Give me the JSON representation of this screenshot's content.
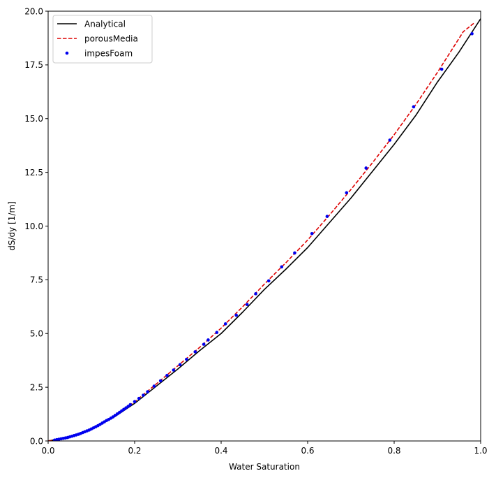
{
  "chart_data": {
    "type": "line",
    "xlabel": "Water Saturation",
    "ylabel": "dS/dy [1/m]",
    "xlim": [
      0.0,
      1.0
    ],
    "ylim": [
      0.0,
      20.0
    ],
    "xticks": [
      {
        "value": 0.0,
        "label": "0.0"
      },
      {
        "value": 0.2,
        "label": "0.2"
      },
      {
        "value": 0.4,
        "label": "0.4"
      },
      {
        "value": 0.6,
        "label": "0.6"
      },
      {
        "value": 0.8,
        "label": "0.8"
      },
      {
        "value": 1.0,
        "label": "1.0"
      }
    ],
    "yticks": [
      {
        "value": 0.0,
        "label": "0.0"
      },
      {
        "value": 2.5,
        "label": "2.5"
      },
      {
        "value": 5.0,
        "label": "5.0"
      },
      {
        "value": 7.5,
        "label": "7.5"
      },
      {
        "value": 10.0,
        "label": "10.0"
      },
      {
        "value": 12.5,
        "label": "12.5"
      },
      {
        "value": 15.0,
        "label": "15.0"
      },
      {
        "value": 17.5,
        "label": "17.5"
      },
      {
        "value": 20.0,
        "label": "20.0"
      }
    ],
    "grid": false,
    "legend_position": "top-left",
    "series": [
      {
        "name": "Analytical",
        "style": "solid-line",
        "color": "#000000",
        "x": [
          0.0,
          0.05,
          0.1,
          0.15,
          0.2,
          0.25,
          0.3,
          0.35,
          0.4,
          0.45,
          0.5,
          0.55,
          0.6,
          0.65,
          0.7,
          0.75,
          0.8,
          0.85,
          0.9,
          0.95,
          1.0
        ],
        "y": [
          0.0,
          0.18,
          0.55,
          1.08,
          1.75,
          2.55,
          3.35,
          4.2,
          5.0,
          6.0,
          7.05,
          8.0,
          9.0,
          10.15,
          11.3,
          12.55,
          13.8,
          15.15,
          16.7,
          18.1,
          19.65
        ]
      },
      {
        "name": "porousMedia",
        "style": "dashed-line",
        "color": "#dd0000",
        "x": [
          0.0,
          0.05,
          0.1,
          0.15,
          0.2,
          0.25,
          0.3,
          0.35,
          0.4,
          0.45,
          0.5,
          0.55,
          0.6,
          0.65,
          0.7,
          0.75,
          0.8,
          0.85,
          0.9,
          0.93,
          0.96,
          0.985
        ],
        "y": [
          0.0,
          0.19,
          0.57,
          1.12,
          1.82,
          2.65,
          3.5,
          4.35,
          5.25,
          6.25,
          7.3,
          8.3,
          9.35,
          10.5,
          11.7,
          12.95,
          14.25,
          15.65,
          17.15,
          18.1,
          19.05,
          19.45
        ]
      },
      {
        "name": "impesFoam",
        "style": "dot-marker",
        "color": "#0000ee",
        "x": [
          0.015,
          0.02,
          0.025,
          0.03,
          0.035,
          0.04,
          0.045,
          0.05,
          0.055,
          0.06,
          0.065,
          0.07,
          0.075,
          0.08,
          0.085,
          0.09,
          0.095,
          0.1,
          0.105,
          0.11,
          0.115,
          0.12,
          0.125,
          0.13,
          0.135,
          0.14,
          0.145,
          0.15,
          0.155,
          0.16,
          0.165,
          0.17,
          0.175,
          0.18,
          0.185,
          0.19,
          0.2,
          0.21,
          0.22,
          0.23,
          0.245,
          0.26,
          0.275,
          0.29,
          0.305,
          0.32,
          0.34,
          0.36,
          0.37,
          0.39,
          0.41,
          0.435,
          0.46,
          0.48,
          0.51,
          0.54,
          0.57,
          0.61,
          0.645,
          0.69,
          0.735,
          0.79,
          0.845,
          0.91,
          0.98
        ],
        "y": [
          0.04,
          0.06,
          0.08,
          0.1,
          0.12,
          0.14,
          0.16,
          0.19,
          0.22,
          0.25,
          0.28,
          0.31,
          0.35,
          0.39,
          0.43,
          0.47,
          0.51,
          0.56,
          0.61,
          0.66,
          0.71,
          0.77,
          0.83,
          0.89,
          0.95,
          1.0,
          1.06,
          1.12,
          1.19,
          1.26,
          1.33,
          1.4,
          1.47,
          1.54,
          1.61,
          1.69,
          1.83,
          1.98,
          2.13,
          2.29,
          2.55,
          2.8,
          3.05,
          3.3,
          3.55,
          3.8,
          4.15,
          4.5,
          4.7,
          5.05,
          5.45,
          5.85,
          6.35,
          6.85,
          7.45,
          8.1,
          8.75,
          9.65,
          10.45,
          11.55,
          12.7,
          14.0,
          15.55,
          17.3,
          18.95
        ]
      }
    ]
  }
}
